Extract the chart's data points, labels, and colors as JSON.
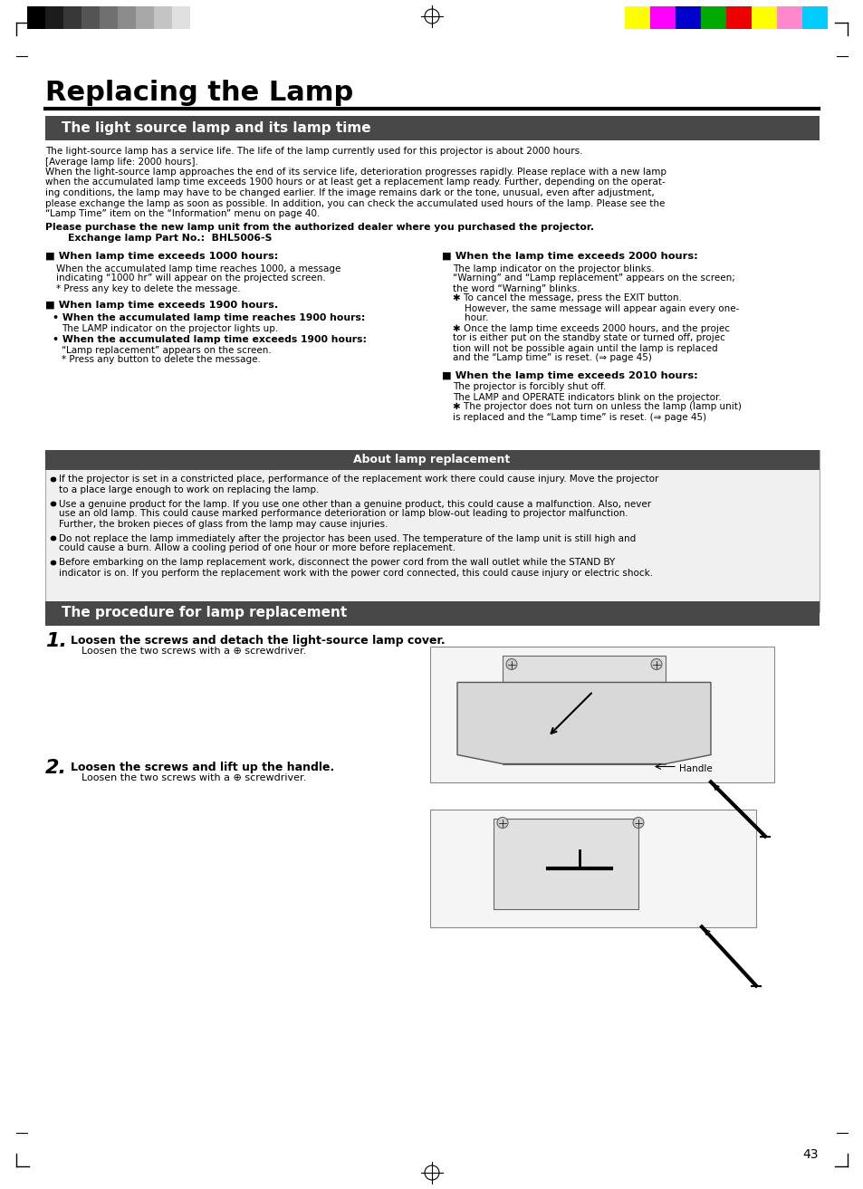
{
  "page_title": "Replacing the Lamp",
  "section1_title": "The light source lamp and its lamp time",
  "section2_title": "About lamp replacement",
  "section3_title": "The procedure for lamp replacement",
  "bg_color": "#ffffff",
  "header_bg": "#484848",
  "page_number": "43",
  "gray_colors": [
    "#000000",
    "#1c1c1c",
    "#383838",
    "#545454",
    "#707070",
    "#8c8c8c",
    "#a8a8a8",
    "#c4c4c4",
    "#e0e0e0",
    "#ffffff"
  ],
  "color_bars": [
    "#ffff00",
    "#ff00ff",
    "#0000cc",
    "#00aa00",
    "#ee0000",
    "#ffff00",
    "#ff88cc",
    "#00ccff"
  ],
  "intro_lines": [
    "The light-source lamp has a service life. The life of the lamp currently used for this projector is about 2000 hours.",
    "[Average lamp life: 2000 hours].",
    "When the light-source lamp approaches the end of its service life, deterioration progresses rapidly. Please replace with a new lamp",
    "when the accumulated lamp time exceeds 1900 hours or at least get a replacement lamp ready. Further, depending on the operat-",
    "ing conditions, the lamp may have to be changed earlier. If the image remains dark or the tone, unusual, even after adjustment,",
    "please exchange the lamp as soon as possible. In addition, you can check the accumulated used hours of the lamp. Please see the",
    "“Lamp Time” item on the “Information” menu on page 40."
  ],
  "bold_notice": "Please purchase the new lamp unit from the authorized dealer where you purchased the projector.",
  "part_no": "Exchange lamp Part No.:  BHL5006-S",
  "c1_h1": "■ When lamp time exceeds 1000 hours:",
  "c1_h1_lines": [
    "When the accumulated lamp time reaches 1000, a message",
    "indicating “1000 hr” will appear on the projected screen.",
    "* Press any key to delete the message."
  ],
  "c1_h2": "■ When lamp time exceeds 1900 hours.",
  "c1_sub1": "• When the accumulated lamp time reaches 1900 hours:",
  "c1_sub1_line": "The LAMP indicator on the projector lights up.",
  "c1_sub2": "• When the accumulated lamp time exceeds 1900 hours:",
  "c1_sub2_lines": [
    "“Lamp replacement” appears on the screen.",
    "* Press any button to delete the message."
  ],
  "c2_h1": "■ When the lamp time exceeds 2000 hours:",
  "c2_h1_lines": [
    "The lamp indicator on the projector blinks.",
    "“Warning” and “Lamp replacement” appears on the screen;",
    "the word “Warning” blinks.",
    "✱ To cancel the message, press the EXIT button.",
    "    However, the same message will appear again every one-",
    "    hour.",
    "✱ Once the lamp time exceeds 2000 hours, and the projec",
    "tor is either put on the standby state or turned off, projec",
    "tion will not be possible again until the lamp is replaced",
    "and the “Lamp time” is reset. (⇒ page 45)"
  ],
  "c2_h2": "■ When the lamp time exceeds 2010 hours:",
  "c2_h2_lines": [
    "The projector is forcibly shut off.",
    "The LAMP and OPERATE indicators blink on the projector.",
    "✱ The projector does not turn on unless the lamp (lamp unit)",
    "is replaced and the “Lamp time” is reset. (⇒ page 45)"
  ],
  "about_bullets": [
    [
      "If the projector is set in a constricted place, performance of the replacement work there could cause injury. Move the projector",
      "to a place large enough to work on replacing the lamp."
    ],
    [
      "Use a genuine product for the lamp. If you use one other than a genuine product, this could cause a malfunction. Also, never",
      "use an old lamp. This could cause marked performance deterioration or lamp blow-out leading to projector malfunction.",
      "Further, the broken pieces of glass from the lamp may cause injuries."
    ],
    [
      "Do not replace the lamp immediately after the projector has been used. The temperature of the lamp unit is still high and",
      "could cause a burn. Allow a cooling period of one hour or more before replacement."
    ],
    [
      "Before embarking on the lamp replacement work, disconnect the power cord from the wall outlet while the STAND BY",
      "indicator is on. If you perform the replacement work with the power cord connected, this could cause injury or electric shock."
    ]
  ],
  "step1_num": "1.",
  "step1_head": "Loosen the screws and detach the light-source lamp cover.",
  "step1_body": "Loosen the two screws with a ⊕ screwdriver.",
  "step2_num": "2.",
  "step2_head": "Loosen the screws and lift up the handle.",
  "step2_body": "Loosen the two screws with a ⊕ screwdriver.",
  "handle_label": "Handle"
}
